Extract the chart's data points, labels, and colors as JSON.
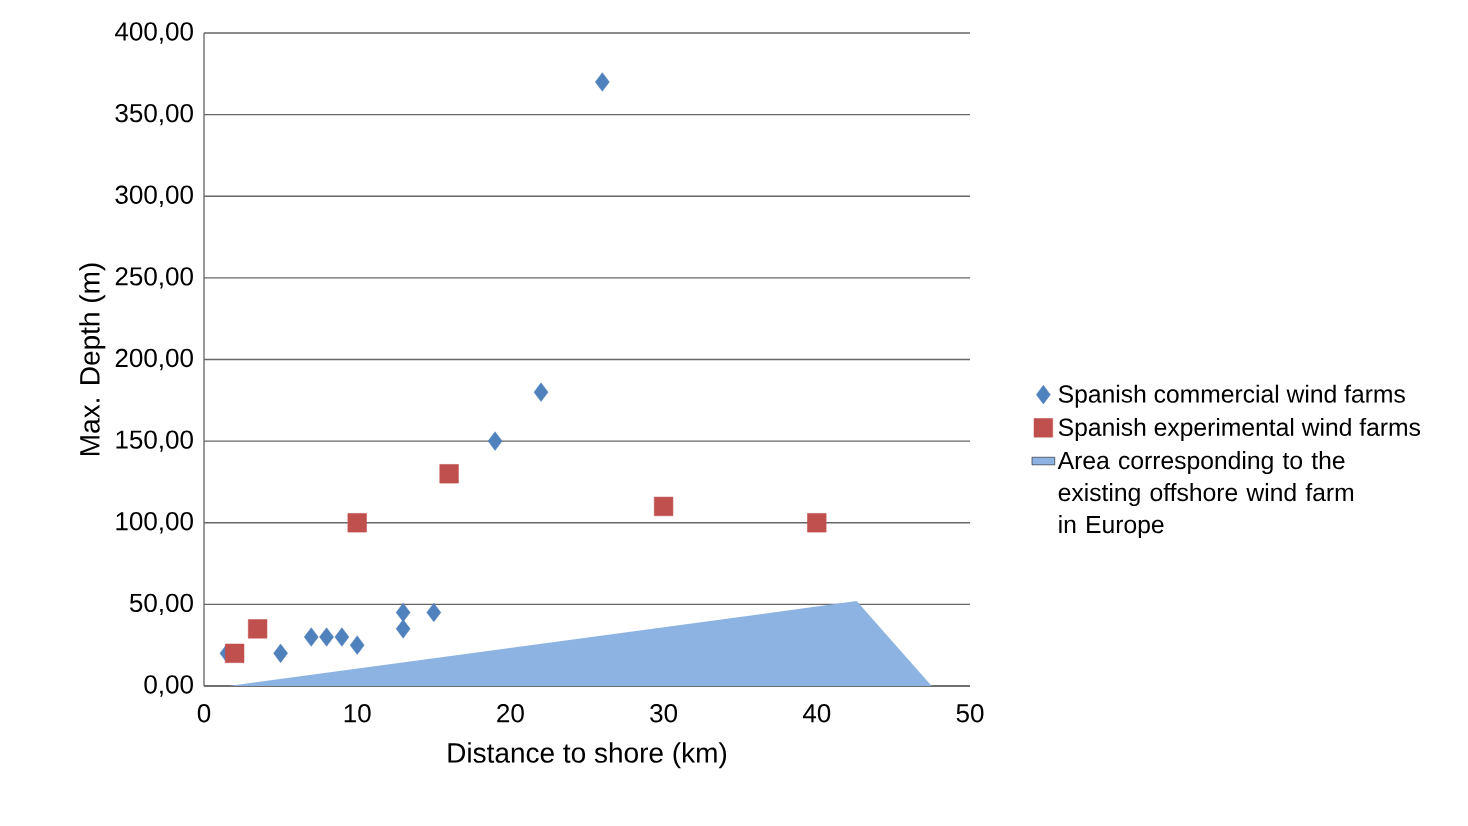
{
  "chart_data": {
    "type": "scatter",
    "xlabel": "Distance to shore (km)",
    "ylabel": "Max. Depth (m)",
    "xlim": [
      0,
      50
    ],
    "ylim": [
      0,
      400
    ],
    "xticks": [
      0,
      10,
      20,
      30,
      40,
      50
    ],
    "yticks": [
      {
        "value": 0,
        "label": "0,00"
      },
      {
        "value": 50,
        "label": "50,00"
      },
      {
        "value": 100,
        "label": "100,00"
      },
      {
        "value": 150,
        "label": "150,00"
      },
      {
        "value": 200,
        "label": "200,00"
      },
      {
        "value": 250,
        "label": "250,00"
      },
      {
        "value": 300,
        "label": "300,00"
      },
      {
        "value": 350,
        "label": "350,00"
      },
      {
        "value": 400,
        "label": "400,00"
      }
    ],
    "grid": "y",
    "legend": "right",
    "series": [
      {
        "name": "Spanish commercial wind farms",
        "marker": "diamond",
        "color": "#4f81bd",
        "x": [
          1.5,
          5,
          7,
          8,
          9,
          10,
          13,
          13,
          15,
          19,
          22,
          26
        ],
        "values": [
          20,
          20,
          30,
          30,
          30,
          25,
          45,
          35,
          45,
          150,
          180,
          370
        ]
      },
      {
        "name": "Spanish experimental wind farms",
        "marker": "square",
        "color": "#c0504d",
        "x": [
          2,
          3.5,
          10,
          16,
          30,
          40
        ],
        "values": [
          20,
          35,
          100,
          130,
          110,
          100
        ]
      },
      {
        "name": "Area corresponding to the existing offshore wind farm in Europe",
        "type": "area",
        "color": "#8db3e2",
        "x": [
          1.6,
          42.6,
          47.5
        ],
        "values": [
          0,
          52,
          0
        ]
      }
    ]
  }
}
